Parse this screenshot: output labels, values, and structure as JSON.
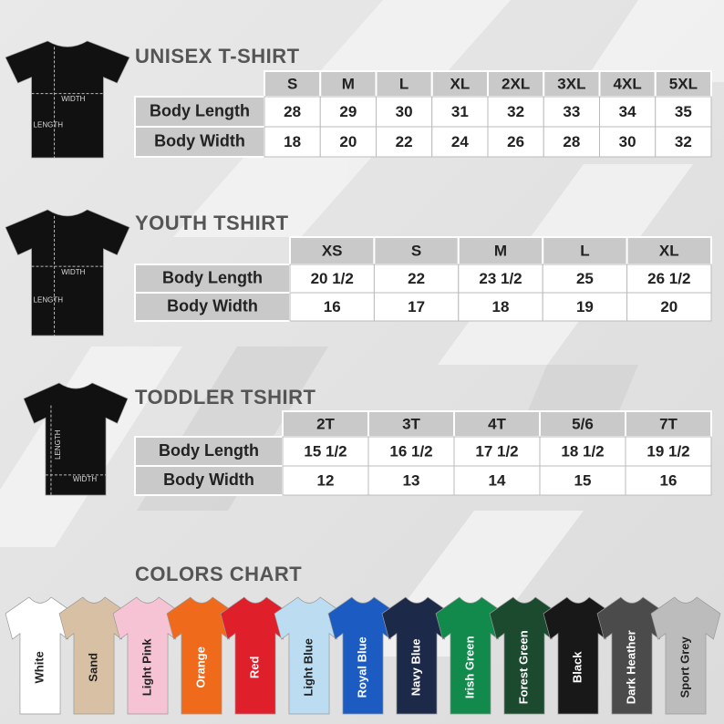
{
  "unisex": {
    "title": "UNISEX T-SHIRT",
    "width_label": "WIDTH",
    "length_label": "LENGTH",
    "sizes": [
      "S",
      "M",
      "L",
      "XL",
      "2XL",
      "3XL",
      "4XL",
      "5XL"
    ],
    "rows": [
      {
        "label": "Body Length",
        "values": [
          "28",
          "29",
          "30",
          "31",
          "32",
          "33",
          "34",
          "35"
        ]
      },
      {
        "label": "Body Width",
        "values": [
          "18",
          "20",
          "22",
          "24",
          "26",
          "28",
          "30",
          "32"
        ]
      }
    ]
  },
  "youth": {
    "title": "YOUTH TSHIRT",
    "width_label": "WIDTH",
    "length_label": "LENGTH",
    "sizes": [
      "XS",
      "S",
      "M",
      "L",
      "XL"
    ],
    "rows": [
      {
        "label": "Body Length",
        "values": [
          "20 1/2",
          "22",
          "23 1/2",
          "25",
          "26 1/2"
        ]
      },
      {
        "label": "Body Width",
        "values": [
          "16",
          "17",
          "18",
          "19",
          "20"
        ]
      }
    ]
  },
  "toddler": {
    "title": "TODDLER TSHIRT",
    "width_label": "WIDTH",
    "length_label": "LENGTH",
    "sizes": [
      "2T",
      "3T",
      "4T",
      "5/6",
      "7T"
    ],
    "rows": [
      {
        "label": "Body Length",
        "values": [
          "15 1/2",
          "16 1/2",
          "17 1/2",
          "18 1/2",
          "19 1/2"
        ]
      },
      {
        "label": "Body Width",
        "values": [
          "12",
          "13",
          "14",
          "15",
          "16"
        ]
      }
    ]
  },
  "colors": {
    "title": "COLORS CHART",
    "names": [
      "White",
      "Sand",
      "Light Pink",
      "Orange",
      "Red",
      "Light Blue",
      "Royal Blue",
      "Navy Blue",
      "Irish Green",
      "Forest Green",
      "Black",
      "Dark Heather",
      "Sport Grey"
    ]
  }
}
